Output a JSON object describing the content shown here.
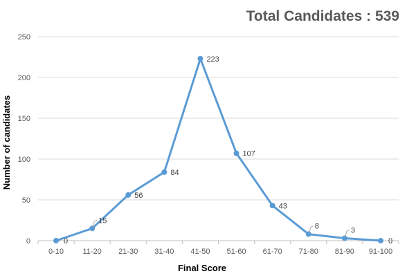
{
  "chart_data": {
    "type": "line",
    "title": "Total Candidates : 539",
    "xlabel": "Final Score",
    "ylabel": "Number of candidates",
    "categories": [
      "0-10",
      "11-20",
      "21-30",
      "31-40",
      "41-50",
      "51-60",
      "61-70",
      "71-80",
      "81-90",
      "91-100"
    ],
    "series": [
      {
        "name": "Number of candidates",
        "values": [
          0,
          15,
          56,
          84,
          223,
          107,
          43,
          8,
          3,
          0
        ],
        "color": "#5b9bd5"
      }
    ],
    "ylim": [
      0,
      250
    ],
    "yticks": [
      0,
      50,
      100,
      150,
      200,
      250
    ],
    "grid": true,
    "legend": "none"
  }
}
